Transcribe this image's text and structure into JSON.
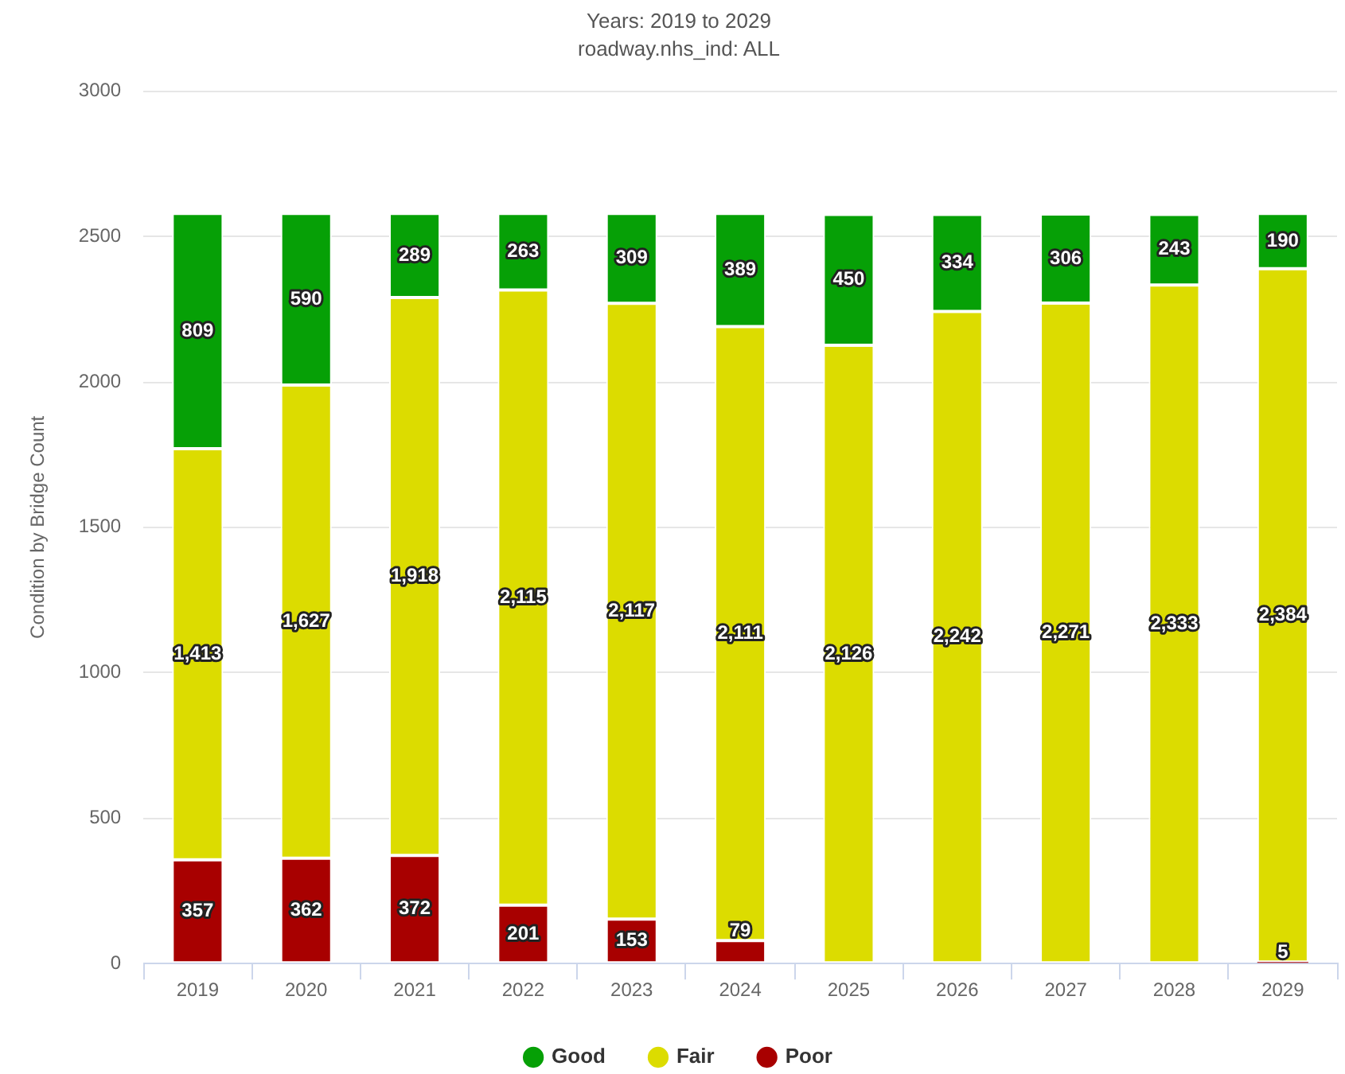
{
  "chart_data": {
    "type": "bar",
    "title": "Years: 2019 to 2029",
    "subtitle": "roadway.nhs_ind: ALL",
    "ylabel": "Condition by Bridge Count",
    "categories": [
      "2019",
      "2020",
      "2021",
      "2022",
      "2023",
      "2024",
      "2025",
      "2026",
      "2027",
      "2028",
      "2029"
    ],
    "stacked": true,
    "series": [
      {
        "name": "Poor",
        "color": "#a80000",
        "values": [
          357,
          362,
          372,
          201,
          153,
          79,
          null,
          null,
          null,
          null,
          5
        ],
        "value_labels": [
          "357",
          "362",
          "372",
          "201",
          "153",
          "79",
          null,
          null,
          null,
          null,
          "5"
        ]
      },
      {
        "name": "Fair",
        "color": "#dcdc00",
        "values": [
          1413,
          1627,
          1918,
          2115,
          2117,
          2111,
          2126,
          2242,
          2271,
          2333,
          2384
        ],
        "value_labels": [
          "1,413",
          "1,627",
          "1,918",
          "2,115",
          "2,117",
          "2,111",
          "2,126",
          "2,242",
          "2,271",
          "2,333",
          "2,384"
        ]
      },
      {
        "name": "Good",
        "color": "#06a006",
        "values": [
          809,
          590,
          289,
          263,
          309,
          389,
          450,
          334,
          306,
          243,
          190
        ],
        "value_labels": [
          "809",
          "590",
          "289",
          "263",
          "309",
          "389",
          "450",
          "334",
          "306",
          "243",
          "190"
        ]
      }
    ],
    "ylim": [
      0,
      3000
    ],
    "yticks": [
      0,
      500,
      1000,
      1500,
      2000,
      2500,
      3000
    ],
    "grid": "y",
    "legend": "bottom"
  }
}
